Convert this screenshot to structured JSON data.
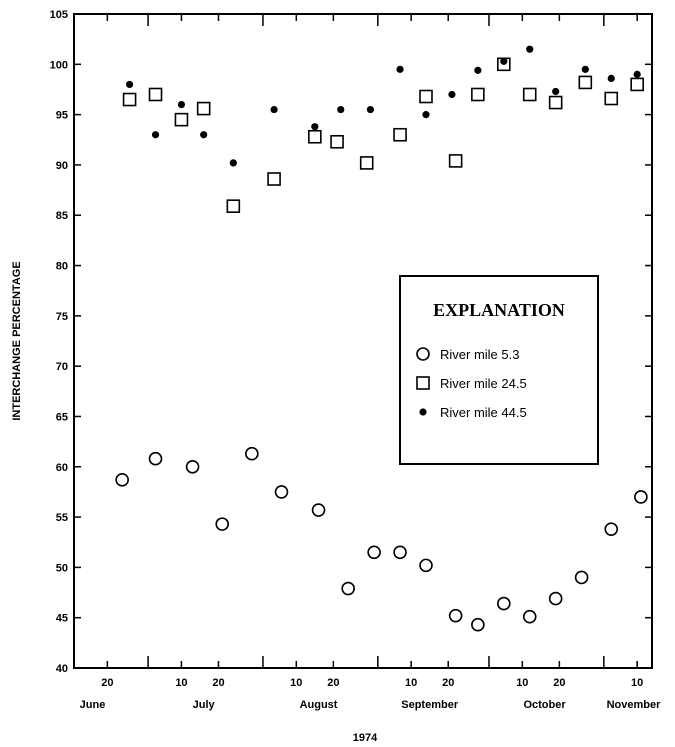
{
  "chart_data": {
    "type": "scatter",
    "title": "",
    "xlabel": "1974",
    "ylabel": "INTERCHANGE PERCENTAGE",
    "ylim": [
      40,
      105
    ],
    "yticks": [
      40,
      45,
      50,
      55,
      60,
      65,
      70,
      75,
      80,
      85,
      90,
      95,
      100,
      105
    ],
    "xlim": [
      "1974-06-11",
      "1974-11-14"
    ],
    "x_day_ticks": [
      {
        "date": "1974-06-20",
        "label": "20"
      },
      {
        "date": "1974-07-10",
        "label": "10"
      },
      {
        "date": "1974-07-20",
        "label": "20"
      },
      {
        "date": "1974-08-10",
        "label": "10"
      },
      {
        "date": "1974-08-20",
        "label": "20"
      },
      {
        "date": "1974-09-10",
        "label": "10"
      },
      {
        "date": "1974-09-20",
        "label": "20"
      },
      {
        "date": "1974-10-10",
        "label": "10"
      },
      {
        "date": "1974-10-20",
        "label": "20"
      },
      {
        "date": "1974-11-10",
        "label": "10"
      }
    ],
    "x_month_starts": [
      "1974-07-01",
      "1974-08-01",
      "1974-09-01",
      "1974-10-01",
      "1974-11-01"
    ],
    "x_month_labels": [
      {
        "date": "1974-06-16",
        "label": "June"
      },
      {
        "date": "1974-07-16",
        "label": "July"
      },
      {
        "date": "1974-08-16",
        "label": "August"
      },
      {
        "date": "1974-09-15",
        "label": "September"
      },
      {
        "date": "1974-10-16",
        "label": "October"
      },
      {
        "date": "1974-11-09",
        "label": "November"
      }
    ],
    "legend_title": "EXPLANATION",
    "legend_position": "right-middle",
    "grid": false,
    "series": [
      {
        "name": "River mile 5.3",
        "marker": "open-circle",
        "points": [
          {
            "x": "1974-06-24",
            "y": 58.7
          },
          {
            "x": "1974-07-03",
            "y": 60.8
          },
          {
            "x": "1974-07-13",
            "y": 60.0
          },
          {
            "x": "1974-07-21",
            "y": 54.3
          },
          {
            "x": "1974-07-29",
            "y": 61.3
          },
          {
            "x": "1974-08-06",
            "y": 57.5
          },
          {
            "x": "1974-08-16",
            "y": 55.7
          },
          {
            "x": "1974-08-24",
            "y": 47.9
          },
          {
            "x": "1974-08-31",
            "y": 51.5
          },
          {
            "x": "1974-09-07",
            "y": 51.5
          },
          {
            "x": "1974-09-14",
            "y": 50.2
          },
          {
            "x": "1974-09-22",
            "y": 45.2
          },
          {
            "x": "1974-09-28",
            "y": 44.3
          },
          {
            "x": "1974-10-05",
            "y": 46.4
          },
          {
            "x": "1974-10-12",
            "y": 45.1
          },
          {
            "x": "1974-10-19",
            "y": 46.9
          },
          {
            "x": "1974-10-26",
            "y": 49.0
          },
          {
            "x": "1974-11-03",
            "y": 53.8
          },
          {
            "x": "1974-11-11",
            "y": 57.0
          }
        ]
      },
      {
        "name": "River mile 24.5",
        "marker": "open-square",
        "points": [
          {
            "x": "1974-06-26",
            "y": 96.5
          },
          {
            "x": "1974-07-03",
            "y": 97.0
          },
          {
            "x": "1974-07-10",
            "y": 94.5
          },
          {
            "x": "1974-07-16",
            "y": 95.6
          },
          {
            "x": "1974-07-24",
            "y": 85.9
          },
          {
            "x": "1974-08-04",
            "y": 88.6
          },
          {
            "x": "1974-08-15",
            "y": 92.8
          },
          {
            "x": "1974-08-21",
            "y": 92.3
          },
          {
            "x": "1974-08-29",
            "y": 90.2
          },
          {
            "x": "1974-09-07",
            "y": 93.0
          },
          {
            "x": "1974-09-14",
            "y": 96.8
          },
          {
            "x": "1974-09-22",
            "y": 90.4
          },
          {
            "x": "1974-09-28",
            "y": 97.0
          },
          {
            "x": "1974-10-05",
            "y": 100.0
          },
          {
            "x": "1974-10-12",
            "y": 97.0
          },
          {
            "x": "1974-10-19",
            "y": 96.2
          },
          {
            "x": "1974-10-27",
            "y": 98.2
          },
          {
            "x": "1974-11-03",
            "y": 96.6
          },
          {
            "x": "1974-11-10",
            "y": 98.0
          }
        ]
      },
      {
        "name": "River mile 44.5",
        "marker": "filled-dot",
        "points": [
          {
            "x": "1974-06-26",
            "y": 98.0
          },
          {
            "x": "1974-07-03",
            "y": 93.0
          },
          {
            "x": "1974-07-10",
            "y": 96.0
          },
          {
            "x": "1974-07-16",
            "y": 93.0
          },
          {
            "x": "1974-07-24",
            "y": 90.2
          },
          {
            "x": "1974-08-04",
            "y": 95.5
          },
          {
            "x": "1974-08-15",
            "y": 93.8
          },
          {
            "x": "1974-08-22",
            "y": 95.5
          },
          {
            "x": "1974-08-30",
            "y": 95.5
          },
          {
            "x": "1974-09-07",
            "y": 99.5
          },
          {
            "x": "1974-09-14",
            "y": 95.0
          },
          {
            "x": "1974-09-21",
            "y": 97.0
          },
          {
            "x": "1974-09-28",
            "y": 99.4
          },
          {
            "x": "1974-10-05",
            "y": 100.3
          },
          {
            "x": "1974-10-12",
            "y": 101.5
          },
          {
            "x": "1974-10-19",
            "y": 97.3
          },
          {
            "x": "1974-10-27",
            "y": 99.5
          },
          {
            "x": "1974-11-03",
            "y": 98.6
          },
          {
            "x": "1974-11-10",
            "y": 99.0
          }
        ]
      }
    ]
  }
}
